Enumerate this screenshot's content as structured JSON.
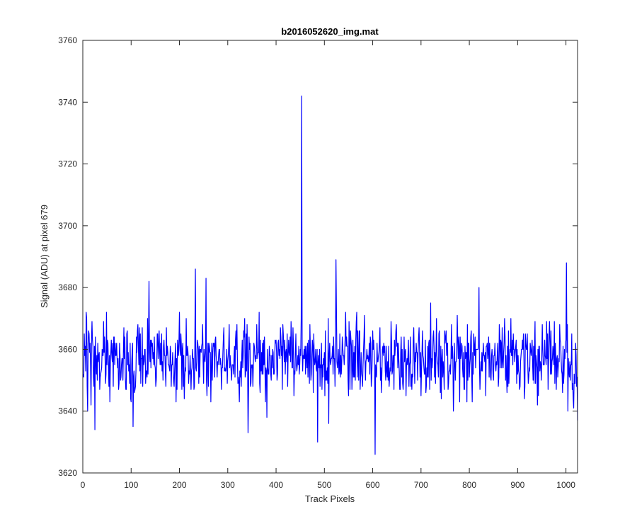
{
  "chart_data": {
    "type": "line",
    "title": "b2016052620_img.mat",
    "xlabel": "Track Pixels",
    "ylabel": "Signal (ADU) at pixel 679",
    "xlim": [
      0,
      1024
    ],
    "ylim": [
      3620,
      3760
    ],
    "xticks": [
      0,
      100,
      200,
      300,
      400,
      500,
      600,
      700,
      800,
      900,
      1000
    ],
    "yticks": [
      3620,
      3640,
      3660,
      3680,
      3700,
      3720,
      3740,
      3760
    ],
    "grid": false,
    "series": [
      {
        "color": "#0000ff",
        "noise": {
          "n_points": 1024,
          "baseline": 3657,
          "spread": 6,
          "min": 3633,
          "max": 3683
        },
        "x": [
          0,
          24,
          103,
          136,
          232,
          254,
          341,
          380,
          451,
          452,
          485,
          508,
          523,
          604,
          819,
          1000,
          1023
        ],
        "y": [
          3652,
          3634,
          3635,
          3682,
          3686,
          3683,
          3633,
          3638,
          3670,
          3742,
          3630,
          3636,
          3689,
          3626,
          3680,
          3688,
          3637
        ]
      }
    ]
  }
}
